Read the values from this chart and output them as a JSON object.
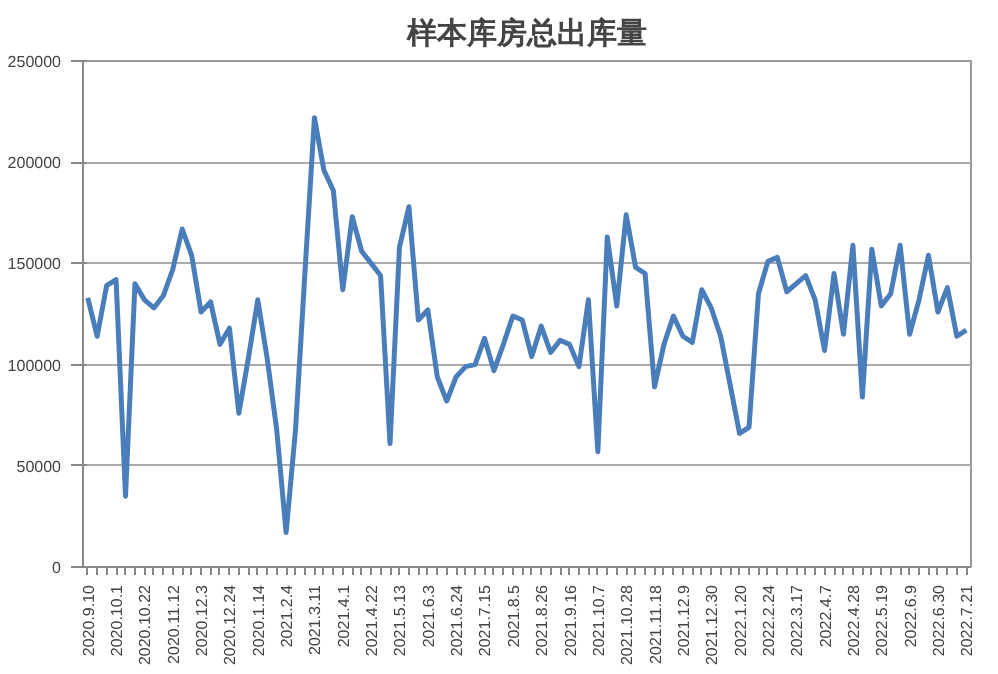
{
  "chart_data": {
    "type": "line",
    "title": "样本库房总出库量",
    "categories": [
      "2020.9.10",
      null,
      null,
      "2020.10.1",
      null,
      null,
      "2020.10.22",
      null,
      null,
      "2020.11.12",
      null,
      null,
      "2020.12.3",
      null,
      null,
      "2020.12.24",
      null,
      null,
      "2020.1.14",
      null,
      null,
      "2021.2.4",
      null,
      null,
      "2021.3.11",
      null,
      null,
      "2021.4.1",
      null,
      null,
      "2021.4.22",
      null,
      null,
      "2021.5.13",
      null,
      null,
      "2021.6.3",
      null,
      null,
      "2021.6.24",
      null,
      null,
      "2021.7.15",
      null,
      null,
      "2021.8.5",
      null,
      null,
      "2021.8.26",
      null,
      null,
      "2021.9.16",
      null,
      null,
      "2021.10.7",
      null,
      null,
      "2021.10.28",
      null,
      null,
      "2021.11.18",
      null,
      null,
      "2021.12.9",
      null,
      null,
      "2021.12.30",
      null,
      null,
      "2022.1.20",
      null,
      null,
      "2022.2.24",
      null,
      null,
      "2022.3.17",
      null,
      null,
      "2022.4.7",
      null,
      null,
      "2022.4.28",
      null,
      null,
      "2022.5.19",
      null,
      null,
      "2022.6.9",
      null,
      null,
      "2022.6.30",
      null,
      null,
      "2022.7.21"
    ],
    "series": [
      {
        "color": "#4a7ebb",
        "values": [
          133000,
          114000,
          139000,
          142000,
          35000,
          140000,
          132000,
          128000,
          134000,
          147000,
          167000,
          154000,
          126000,
          131000,
          110000,
          118000,
          76000,
          103000,
          132000,
          103000,
          68000,
          17000,
          68000,
          146000,
          222000,
          196000,
          186000,
          137000,
          173000,
          156000,
          150000,
          144000,
          61000,
          158000,
          178000,
          122000,
          127000,
          94000,
          82000,
          94000,
          99000,
          100000,
          113000,
          97000,
          110000,
          124000,
          122000,
          104000,
          119000,
          106000,
          112000,
          110000,
          99000,
          132000,
          57000,
          163000,
          129000,
          174000,
          148000,
          145000,
          89000,
          110000,
          124000,
          114000,
          111000,
          137000,
          128000,
          114000,
          90000,
          66000,
          69000,
          135000,
          151000,
          153000,
          136000,
          140000,
          144000,
          132000,
          107000,
          145000,
          115000,
          159000,
          84000,
          157000,
          129000,
          135000,
          159000,
          115000,
          132000,
          154000,
          126000,
          138000,
          114000,
          117000
        ]
      }
    ],
    "ylim": [
      0,
      250000
    ],
    "yticks": [
      0,
      50000,
      100000,
      150000,
      200000,
      250000
    ],
    "grid": "y",
    "marker": "none",
    "line_style": "solid"
  }
}
